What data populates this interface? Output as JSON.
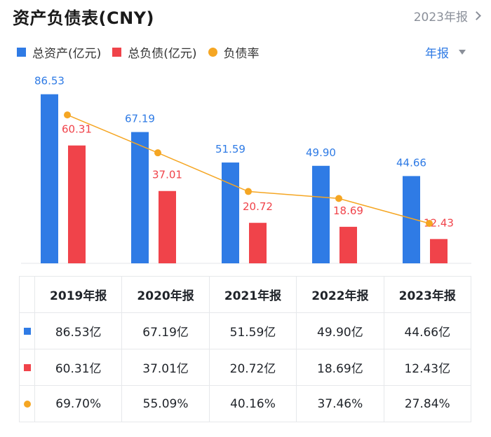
{
  "header": {
    "title": "资产负债表(CNY)",
    "period": "2023年报"
  },
  "legend": {
    "items": [
      {
        "label": "总资产(亿元)",
        "color": "#2f7be5"
      },
      {
        "label": "总负债(亿元)",
        "color": "#f0434a"
      },
      {
        "label": "负债率",
        "color": "#f5a623"
      }
    ]
  },
  "dropdown": {
    "selected": "年报"
  },
  "chart_data": {
    "type": "bar",
    "title": "资产负债表(CNY)",
    "categories": [
      "2019年报",
      "2020年报",
      "2021年报",
      "2022年报",
      "2023年报"
    ],
    "series": [
      {
        "name": "总资产(亿元)",
        "kind": "bar",
        "color": "#2f7be5",
        "values": [
          86.53,
          67.19,
          51.59,
          49.9,
          44.66
        ],
        "labels": [
          "86.53",
          "67.19",
          "51.59",
          "49.90",
          "44.66"
        ]
      },
      {
        "name": "总负债(亿元)",
        "kind": "bar",
        "color": "#f0434a",
        "values": [
          60.31,
          37.01,
          20.72,
          18.69,
          12.43
        ],
        "labels": [
          "60.31",
          "37.01",
          "20.72",
          "18.69",
          "12.43"
        ]
      },
      {
        "name": "负债率",
        "kind": "line",
        "color": "#f5a623",
        "values": [
          69.7,
          55.09,
          40.16,
          37.46,
          27.84
        ],
        "unit": "%"
      }
    ],
    "ylim": [
      0,
      90
    ]
  },
  "table": {
    "headers": [
      "2019年报",
      "2020年报",
      "2021年报",
      "2022年报",
      "2023年报"
    ],
    "rows": [
      {
        "marker": "square",
        "color": "#2f7be5",
        "cells": [
          "86.53亿",
          "67.19亿",
          "51.59亿",
          "49.90亿",
          "44.66亿"
        ]
      },
      {
        "marker": "square",
        "color": "#f0434a",
        "cells": [
          "60.31亿",
          "37.01亿",
          "20.72亿",
          "18.69亿",
          "12.43亿"
        ]
      },
      {
        "marker": "dot",
        "color": "#f5a623",
        "cells": [
          "69.70%",
          "55.09%",
          "40.16%",
          "37.46%",
          "27.84%"
        ]
      }
    ]
  }
}
